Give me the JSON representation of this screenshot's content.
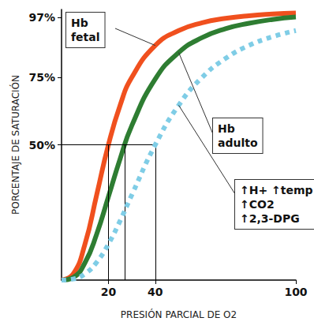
{
  "chart_data": {
    "type": "line",
    "x_label": "PRESIÓN PARCIAL DE O2",
    "y_label": "PORCENTAJE DE SATURACIÓN",
    "x": [
      0,
      5,
      10,
      15,
      20,
      25,
      30,
      40,
      50,
      60,
      70,
      80,
      90,
      100
    ],
    "series": [
      {
        "name": "Hb\nfetal",
        "color": "#f0501e",
        "line_style": "solid",
        "values": [
          0,
          2.3,
          13.3,
          31.5,
          50,
          64.6,
          74.9,
          86.7,
          92.2,
          95.1,
          96.7,
          97.7,
          98.3,
          98.7
        ]
      },
      {
        "name": "Hb\nadulto",
        "color": "#2e7d32",
        "line_style": "solid",
        "values": [
          0,
          1.0,
          6.4,
          17.0,
          30.8,
          44.8,
          57.1,
          74.3,
          84.1,
          89.6,
          92.9,
          94.9,
          96.3,
          97.2
        ]
      },
      {
        "name": "↑H+ ↑temp\n↑CO2\n↑2,3-DPG",
        "color": "#7fcde6",
        "line_style": "dotted",
        "values": [
          0,
          0.4,
          2.3,
          6.6,
          13.3,
          21.9,
          31.5,
          50,
          64.6,
          74.9,
          81.9,
          86.7,
          89.9,
          92.2
        ]
      }
    ],
    "guides": {
      "y": 50,
      "x": [
        20,
        27,
        40
      ]
    },
    "xlim": [
      0,
      100
    ],
    "xticks": [
      20,
      40,
      100
    ],
    "ylim": [
      0,
      100
    ],
    "yticks": [
      {
        "value": 50,
        "label": "50%"
      },
      {
        "value": 75,
        "label": "75%"
      },
      {
        "value": 97,
        "label": "97%"
      }
    ],
    "grid": false
  }
}
